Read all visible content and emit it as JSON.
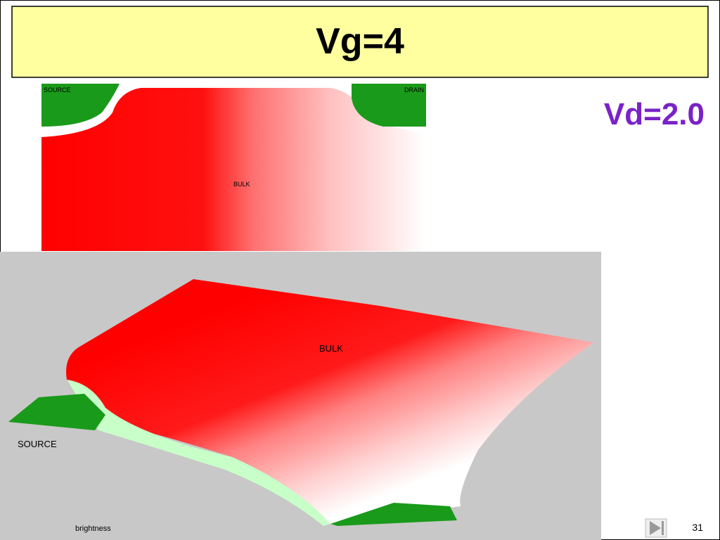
{
  "slide": {
    "title": "Vg=4",
    "subtitle": "Vd=2.0",
    "top_image": {
      "labels": [
        "SOURCE",
        "DRAIN",
        "BULK"
      ]
    },
    "bottom_image": {
      "labels": [
        "BULK",
        "SOURCE",
        "brightness"
      ]
    },
    "page_number": "31"
  }
}
